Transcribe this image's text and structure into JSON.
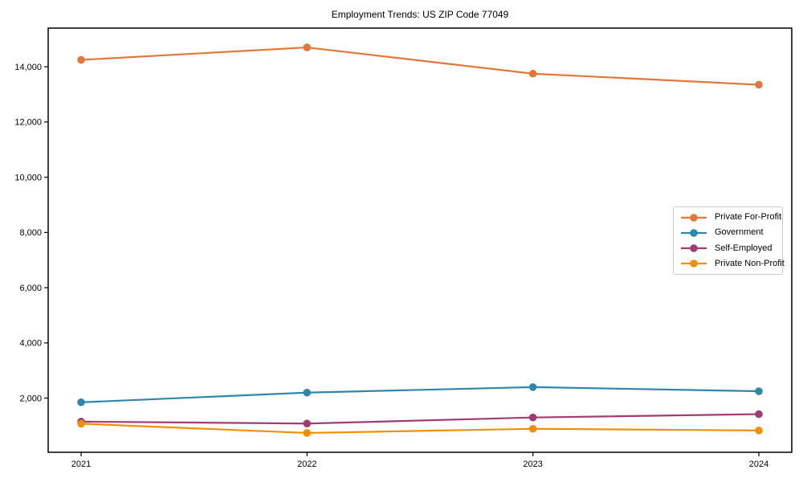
{
  "chart_data": {
    "type": "line",
    "title": "Employment Trends: US ZIP Code 77049",
    "xlabel": "",
    "ylabel": "",
    "categories": [
      "2021",
      "2022",
      "2023",
      "2024"
    ],
    "series": [
      {
        "name": "Private For-Profit",
        "color": "#e2773b",
        "values": [
          14250,
          14700,
          13750,
          13350
        ]
      },
      {
        "name": "Government",
        "color": "#2e86ab",
        "values": [
          1850,
          2200,
          2400,
          2250
        ]
      },
      {
        "name": "Self-Employed",
        "color": "#a23b72",
        "values": [
          1150,
          1080,
          1300,
          1420
        ]
      },
      {
        "name": "Private Non-Profit",
        "color": "#f18f01",
        "values": [
          1075,
          740,
          890,
          830
        ]
      }
    ],
    "yticks": [
      2000,
      4000,
      6000,
      8000,
      10000,
      12000,
      14000
    ],
    "ytick_labels": [
      "2,000",
      "4,000",
      "6,000",
      "8,000",
      "10,000",
      "12,000",
      "14,000"
    ],
    "xtick_labels": [
      "2021",
      "2022",
      "2023",
      "2024"
    ],
    "ylim": [
      40,
      15400
    ],
    "grid": false,
    "marker": "circle",
    "legend_position": "center right",
    "axis_color": "#000000"
  }
}
